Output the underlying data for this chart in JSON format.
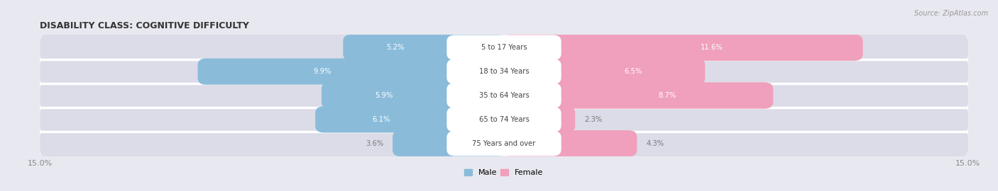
{
  "title": "DISABILITY CLASS: COGNITIVE DIFFICULTY",
  "source": "Source: ZipAtlas.com",
  "categories": [
    "5 to 17 Years",
    "18 to 34 Years",
    "35 to 64 Years",
    "65 to 74 Years",
    "75 Years and over"
  ],
  "male_values": [
    5.2,
    9.9,
    5.9,
    6.1,
    3.6
  ],
  "female_values": [
    11.6,
    6.5,
    8.7,
    2.3,
    4.3
  ],
  "max_val": 15.0,
  "male_color": "#8abcda",
  "female_color": "#f0a0bc",
  "female_light_color": "#f5c0d0",
  "label_color_outside": "#777777",
  "bg_color": "#e8e8f0",
  "row_bg_color": "#f2f2f6",
  "bar_bg_color": "#dcdce8",
  "sep_color": "#ffffff",
  "title_fontsize": 9,
  "bar_height": 0.55,
  "xlim": 15.0,
  "label_inside_color": "#ffffff",
  "center_label_color": "#444444",
  "center_label_bg": "#ffffff"
}
